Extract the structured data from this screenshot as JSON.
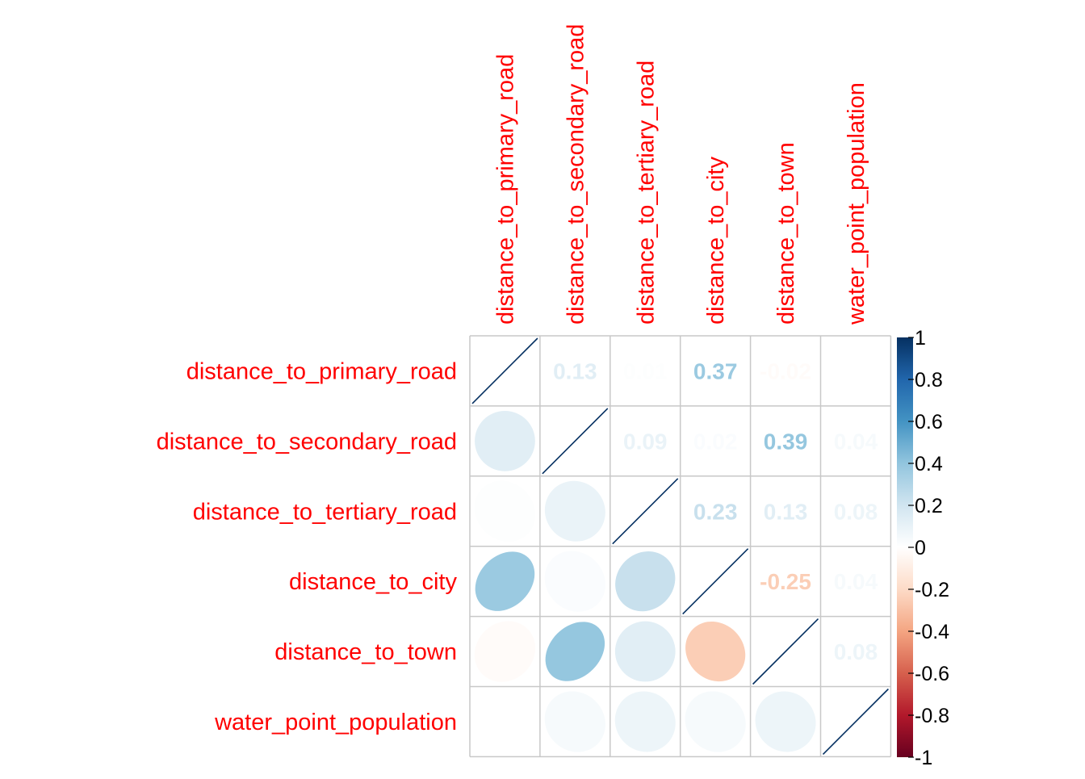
{
  "chart_data": {
    "type": "heatmap",
    "title": "",
    "variables": [
      "distance_to_primary_road",
      "distance_to_secondary_road",
      "distance_to_tertiary_road",
      "distance_to_city",
      "distance_to_town",
      "water_point_population"
    ],
    "matrix": [
      [
        1.0,
        0.13,
        0.01,
        0.37,
        -0.02,
        0.0
      ],
      [
        0.13,
        1.0,
        0.09,
        0.02,
        0.39,
        0.04
      ],
      [
        0.01,
        0.09,
        1.0,
        0.23,
        0.13,
        0.08
      ],
      [
        0.37,
        0.02,
        0.23,
        1.0,
        -0.25,
        0.04
      ],
      [
        -0.02,
        0.39,
        0.13,
        -0.25,
        1.0,
        0.08
      ],
      [
        0.0,
        0.04,
        0.08,
        0.04,
        0.08,
        1.0
      ]
    ],
    "upper_method": "number",
    "lower_method": "ellipse",
    "diagonal_method": "line",
    "label_color": "#ff0000",
    "grid_color": "#c8c8c8",
    "colorbar": {
      "range": [
        -1,
        1
      ],
      "ticks": [
        "1",
        "0.8",
        "0.6",
        "0.4",
        "0.2",
        "0",
        "-0.2",
        "-0.4",
        "-0.6",
        "-0.8",
        "-1"
      ],
      "colors": [
        "#053061",
        "#2166ac",
        "#4393c3",
        "#92c5de",
        "#d1e5f0",
        "#ffffff",
        "#fddbc7",
        "#f4a582",
        "#d6604d",
        "#b2182b",
        "#67001f"
      ],
      "placement": "right"
    }
  }
}
